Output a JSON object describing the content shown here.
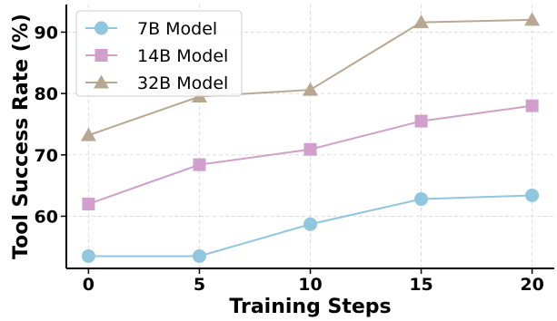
{
  "chart_data": {
    "type": "line",
    "x": [
      0,
      5,
      10,
      15,
      20
    ],
    "xlabel": "Training Steps",
    "ylabel": "Tool Success Rate (%)",
    "xticks": [
      0,
      5,
      10,
      15,
      20
    ],
    "yticks": [
      60,
      70,
      80,
      90
    ],
    "xlim": [
      -1,
      21
    ],
    "ylim": [
      51.5,
      94.5
    ],
    "grid": true,
    "legend_position": "top-left",
    "series": [
      {
        "name": "7B Model",
        "values": [
          53.5,
          53.5,
          58.7,
          62.8,
          63.4
        ],
        "color": "#92c5de",
        "marker": "circle"
      },
      {
        "name": "14B Model",
        "values": [
          62.0,
          68.4,
          70.9,
          75.5,
          78.0
        ],
        "color": "#d09fcc",
        "marker": "square"
      },
      {
        "name": "32B Model",
        "values": [
          73.2,
          79.5,
          80.6,
          91.6,
          92.0
        ],
        "color": "#b8a893",
        "marker": "triangle"
      }
    ]
  }
}
